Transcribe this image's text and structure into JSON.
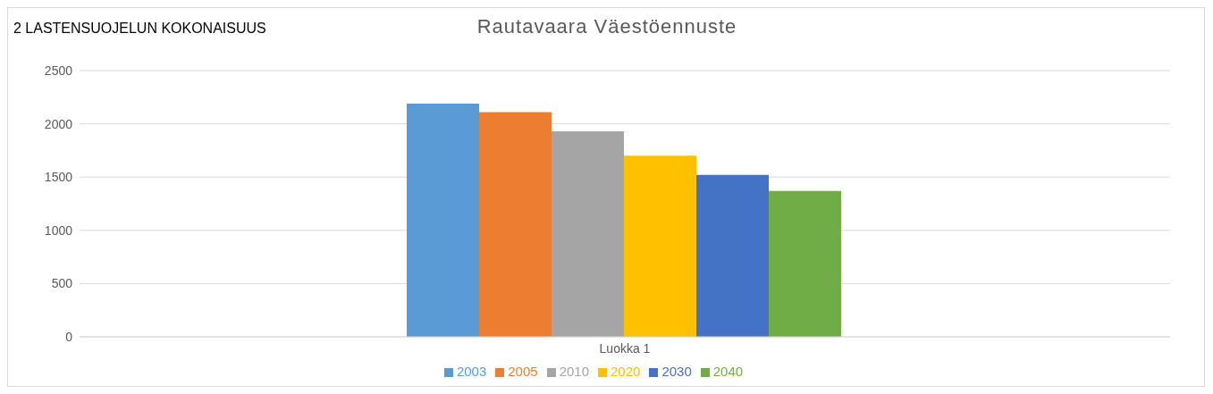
{
  "chart_data": {
    "type": "bar",
    "title": "Rautavaara Väestöennuste",
    "categories": [
      "Luokka 1"
    ],
    "series": [
      {
        "name": "2003",
        "color": "#5b9bd5",
        "values": [
          2190
        ]
      },
      {
        "name": "2005",
        "color": "#ed7d31",
        "values": [
          2110
        ]
      },
      {
        "name": "2010",
        "color": "#a5a5a5",
        "values": [
          1930
        ]
      },
      {
        "name": "2020",
        "color": "#ffc000",
        "values": [
          1700
        ]
      },
      {
        "name": "2030",
        "color": "#4472c4",
        "values": [
          1520
        ]
      },
      {
        "name": "2040",
        "color": "#70ad47",
        "values": [
          1370
        ]
      }
    ],
    "ylim": [
      0,
      2500
    ],
    "yticks": [
      0,
      500,
      1000,
      1500,
      2000,
      2500
    ],
    "grid": "y",
    "legend": "bottom",
    "annotations": [
      "2 LASTENSUOJELUN KOKONAISUUS"
    ]
  }
}
